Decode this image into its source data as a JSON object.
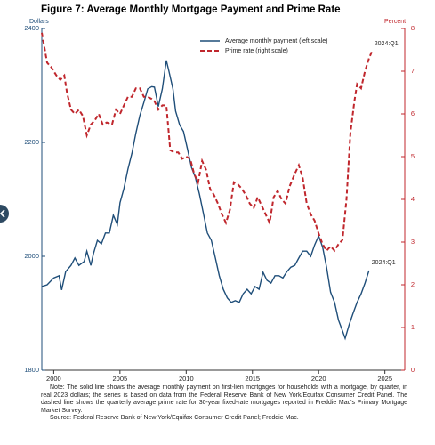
{
  "chart_data": {
    "type": "line",
    "title": "Figure 7: Average Monthly Mortgage Payment and Prime Rate",
    "ylabel": "Dollars",
    "y2label": "Percent",
    "xlim": [
      1999.1,
      2026.5
    ],
    "xticks": [
      2000,
      2005,
      2010,
      2015,
      2020,
      2025
    ],
    "ylim": [
      1800,
      2400
    ],
    "yticks": [
      1800,
      2000,
      2200,
      2400
    ],
    "y2lim": [
      0,
      8
    ],
    "y2ticks": [
      0,
      1,
      2,
      3,
      4,
      5,
      6,
      7,
      8
    ],
    "legend": "upper center",
    "series": [
      {
        "name": "Average monthly payment (left scale)",
        "color": "#1f4e79",
        "style": "solid",
        "x": [
          1999.1,
          1999.5,
          2000.0,
          2000.4,
          2000.6,
          2000.9,
          2001.3,
          2001.6,
          2001.9,
          2002.3,
          2002.5,
          2002.8,
          2003.0,
          2003.3,
          2003.6,
          2003.9,
          2004.2,
          2004.5,
          2004.8,
          2005.0,
          2005.3,
          2005.6,
          2005.9,
          2006.2,
          2006.5,
          2006.8,
          2007.1,
          2007.4,
          2007.6,
          2007.9,
          2008.2,
          2008.5,
          2008.7,
          2009.0,
          2009.2,
          2009.5,
          2009.8,
          2010.1,
          2010.4,
          2010.7,
          2011.0,
          2011.3,
          2011.6,
          2011.9,
          2012.2,
          2012.5,
          2012.8,
          2013.1,
          2013.4,
          2013.7,
          2014.0,
          2014.3,
          2014.6,
          2014.9,
          2015.2,
          2015.5,
          2015.8,
          2016.1,
          2016.4,
          2016.7,
          2017.0,
          2017.3,
          2017.6,
          2017.9,
          2018.2,
          2018.5,
          2018.8,
          2019.1,
          2019.4,
          2019.7,
          2020.0,
          2020.3,
          2020.6,
          2020.9,
          2021.2,
          2021.5,
          2021.8,
          2022.0,
          2022.3,
          2022.6,
          2022.9,
          2023.2,
          2023.5,
          2023.8
        ],
        "values": [
          1947,
          1950,
          1962,
          1966,
          1941,
          1973,
          1984,
          1997,
          1984,
          1991,
          2009,
          1984,
          2005,
          2028,
          2022,
          2041,
          2041,
          2072,
          2056,
          2094,
          2119,
          2153,
          2181,
          2216,
          2247,
          2270,
          2294,
          2298,
          2297,
          2263,
          2294,
          2344,
          2325,
          2294,
          2255,
          2231,
          2219,
          2188,
          2156,
          2138,
          2109,
          2075,
          2041,
          2028,
          1997,
          1966,
          1942,
          1927,
          1919,
          1922,
          1919,
          1934,
          1942,
          1934,
          1947,
          1942,
          1972,
          1958,
          1953,
          1966,
          1966,
          1962,
          1973,
          1981,
          1984,
          1997,
          2009,
          2009,
          2000,
          2020,
          2036,
          2016,
          1981,
          1937,
          1919,
          1888,
          1869,
          1856,
          1880,
          1900,
          1919,
          1934,
          1953,
          1975
        ],
        "end_label": "2024:Q1"
      },
      {
        "name": "Prime rate (right scale)",
        "color": "#c0272d",
        "style": "dashed",
        "axis": "y2",
        "x": [
          1999.1,
          1999.5,
          1999.8,
          2000.2,
          2000.5,
          2000.8,
          2001.0,
          2001.3,
          2001.6,
          2001.9,
          2002.2,
          2002.5,
          2002.8,
          2003.1,
          2003.4,
          2003.7,
          2004.0,
          2004.4,
          2004.7,
          2005.0,
          2005.3,
          2005.6,
          2005.9,
          2006.2,
          2006.5,
          2006.8,
          2007.1,
          2007.4,
          2007.6,
          2007.9,
          2008.2,
          2008.5,
          2008.8,
          2009.1,
          2009.4,
          2009.7,
          2010.0,
          2010.3,
          2010.6,
          2010.9,
          2011.2,
          2011.5,
          2011.8,
          2012.1,
          2012.4,
          2012.7,
          2013.0,
          2013.3,
          2013.6,
          2013.9,
          2014.2,
          2014.5,
          2014.8,
          2015.1,
          2015.4,
          2015.7,
          2016.0,
          2016.3,
          2016.6,
          2016.9,
          2017.2,
          2017.5,
          2017.8,
          2018.2,
          2018.5,
          2018.8,
          2019.1,
          2019.4,
          2019.7,
          2020.0,
          2020.3,
          2020.6,
          2020.9,
          2021.2,
          2021.5,
          2021.8,
          2022.1,
          2022.4,
          2022.7,
          2022.9,
          2023.2,
          2023.5,
          2023.8,
          2024.0
        ],
        "values": [
          7.9,
          7.2,
          7.1,
          6.9,
          6.8,
          6.9,
          6.5,
          6.1,
          6.0,
          6.1,
          5.95,
          5.5,
          5.75,
          5.85,
          6.0,
          5.75,
          5.8,
          5.75,
          6.1,
          6.0,
          6.2,
          6.4,
          6.4,
          6.6,
          6.6,
          6.4,
          6.4,
          6.35,
          6.3,
          6.1,
          6.2,
          6.2,
          5.15,
          5.1,
          5.1,
          4.95,
          5.0,
          4.95,
          4.6,
          4.4,
          4.9,
          4.7,
          4.25,
          4.1,
          3.9,
          3.65,
          3.45,
          3.75,
          4.4,
          4.35,
          4.25,
          4.1,
          3.9,
          3.8,
          4.05,
          3.85,
          3.65,
          3.45,
          4.05,
          4.2,
          4.0,
          3.9,
          4.3,
          4.6,
          4.8,
          4.5,
          3.9,
          3.65,
          3.5,
          3.2,
          2.95,
          2.8,
          2.9,
          2.8,
          2.95,
          3.05,
          4.0,
          5.55,
          6.3,
          6.7,
          6.6,
          7.0,
          7.3,
          7.45
        ],
        "end_label": "2024:Q1"
      }
    ],
    "notes": [
      "Note: The solid line shows the average monthly payment on first-lien mortgages for households with a mortgage, by quarter, in real 2023 dollars; the series is based on data from the Federal Reserve Bank of New York/Equifax Consumer Credit Panel. The dashed line shows the quarterly average prime rate for 30-year fixed-rate mortgages reported in Freddie Mac's Primary Mortgage Market Survey.",
      "Source: Federal Reserve Bank of New York/Equifax Consumer Credit Panel; Freddie Mac."
    ]
  }
}
